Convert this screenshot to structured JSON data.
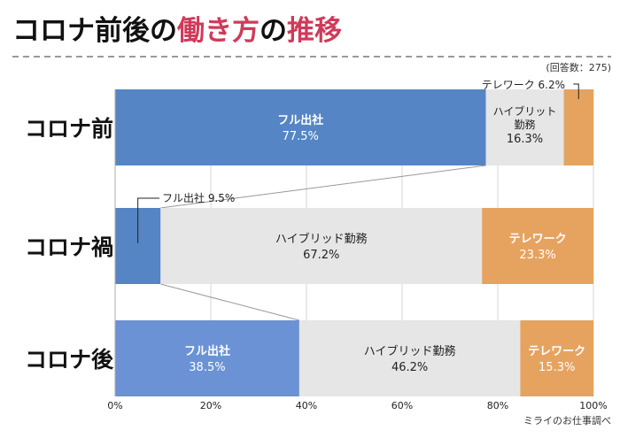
{
  "header": {
    "title_part1": "コロナ前後の",
    "title_part2": "働き方",
    "title_part3": "の",
    "title_part4": "推移",
    "accent_color": "#d03a5a"
  },
  "note": "(回答数：275)",
  "source": "ミライのお仕事調べ",
  "colors": {
    "fulltime": "#5585c5",
    "fulltime_alt": "#6b92d4",
    "hybrid": "#e6e6e6",
    "telework": "#e6a360",
    "connector": "#999999"
  },
  "chart_data": {
    "type": "bar",
    "orientation": "horizontal",
    "stacked": true,
    "title": "コロナ前後の働き方の推移",
    "categories": [
      "コロナ前",
      "コロナ禍",
      "コロナ後"
    ],
    "series": [
      {
        "name": "フル出社",
        "values": [
          77.5,
          9.5,
          38.5
        ]
      },
      {
        "name": "ハイブリッド勤務",
        "values": [
          16.3,
          67.2,
          46.2
        ]
      },
      {
        "name": "テレワーク",
        "values": [
          6.2,
          23.3,
          15.3
        ]
      }
    ],
    "xlim": [
      0,
      100
    ],
    "xticks": [
      "0%",
      "20%",
      "40%",
      "60%",
      "80%",
      "100%"
    ],
    "grid": true,
    "callouts": {
      "pre_telework": "テレワーク  6.2%",
      "during_fulltime": "フル出社  9.5%"
    },
    "value_labels": {
      "fulltime": [
        "77.5%",
        null,
        "38.5%"
      ],
      "hybrid": [
        "16.3%",
        "67.2%",
        "46.2%"
      ],
      "telework": [
        null,
        "23.3%",
        "15.3%"
      ]
    },
    "hybrid_label_stacked": "ハイブリット\n勤務"
  }
}
